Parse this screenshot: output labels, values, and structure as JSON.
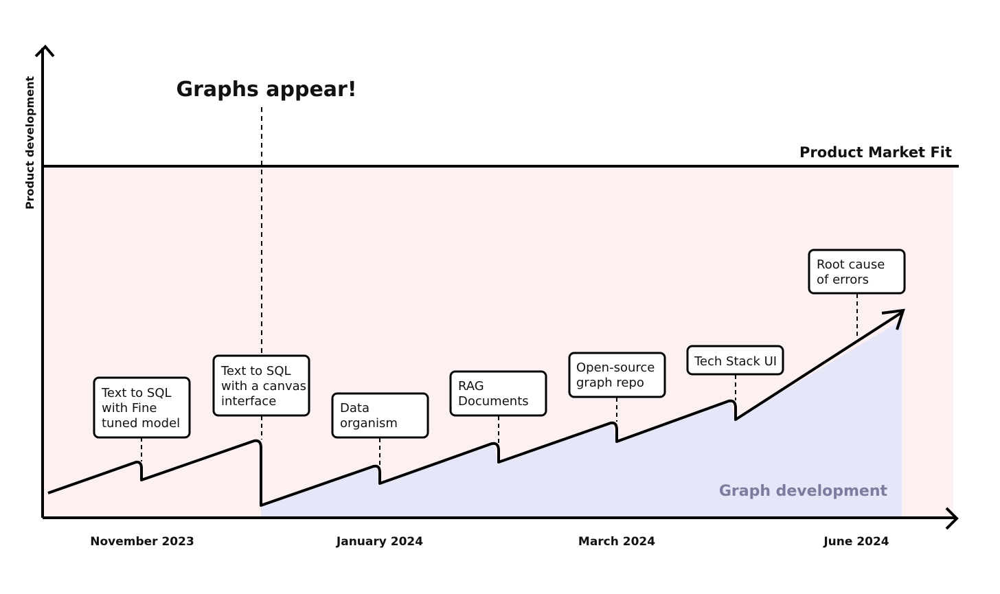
{
  "axes": {
    "y_title": "Product development"
  },
  "threshold": {
    "label": "Product Market Fit"
  },
  "headline": {
    "text": "Graphs appear!"
  },
  "region": {
    "label": "Graph development"
  },
  "x_labels": [
    "November 2023",
    "January 2024",
    "March 2024",
    "June 2024"
  ],
  "milestones": [
    {
      "lines": [
        "Text to SQL",
        "with Fine",
        "tuned model"
      ]
    },
    {
      "lines": [
        "Text to SQL",
        "with a canvas",
        "interface"
      ]
    },
    {
      "lines": [
        "Data",
        "organism"
      ]
    },
    {
      "lines": [
        "RAG",
        "Documents"
      ]
    },
    {
      "lines": [
        "Open-source",
        "graph repo"
      ]
    },
    {
      "lines": [
        "Tech Stack UI"
      ]
    },
    {
      "lines": [
        "Root cause",
        "of errors"
      ]
    }
  ],
  "colors": {
    "background_band": "#fdf0f0",
    "graph_fill": "#e5e6f8",
    "line": "#000000",
    "graph_label": "#7b7d9e"
  }
}
